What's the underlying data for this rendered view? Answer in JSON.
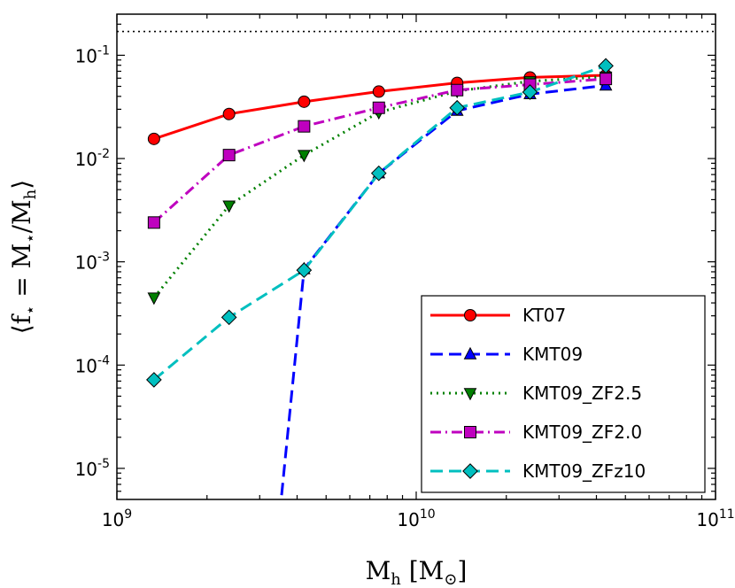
{
  "chart_data": {
    "type": "line",
    "xscale": "log",
    "yscale": "log",
    "xlim": [
      1000000000.0,
      100000000000.0
    ],
    "ylim": [
      5e-06,
      0.25
    ],
    "xlabel": "M_h [M_⊙]",
    "ylabel": "⟨f_⋆ = M_⋆/M_h⟩",
    "x_ticks": [
      {
        "value": 1000000000.0,
        "base": "10",
        "exp": "9"
      },
      {
        "value": 10000000000.0,
        "base": "10",
        "exp": "10"
      },
      {
        "value": 100000000000.0,
        "base": "10",
        "exp": "11"
      }
    ],
    "y_ticks": [
      {
        "value": 1e-05,
        "base": "10",
        "exp": "-5"
      },
      {
        "value": 0.0001,
        "base": "10",
        "exp": "-4"
      },
      {
        "value": 0.001,
        "base": "10",
        "exp": "-3"
      },
      {
        "value": 0.01,
        "base": "10",
        "exp": "-2"
      },
      {
        "value": 0.1,
        "base": "10",
        "exp": "-1"
      }
    ],
    "reference_line": {
      "y": 0.17,
      "style": "dotted",
      "color": "#000000"
    },
    "legend_position": "lower-right",
    "series": [
      {
        "name": "KT07",
        "color": "#ff0000",
        "marker": "circle",
        "dash": "solid",
        "x": [
          1330000000.0,
          2370000000.0,
          4220000000.0,
          7500000000.0,
          13700000000.0,
          24000000000.0,
          43000000000.0
        ],
        "y": [
          0.0155,
          0.027,
          0.0355,
          0.0445,
          0.054,
          0.061,
          0.064
        ]
      },
      {
        "name": "KMT09",
        "color": "#0000ff",
        "marker": "triangle-up",
        "dash": "dashed",
        "x": [
          3550000000.0,
          4220000000.0,
          7500000000.0,
          13700000000.0,
          24000000000.0,
          43000000000.0
        ],
        "y": [
          5.5e-06,
          0.00085,
          0.0072,
          0.029,
          0.042,
          0.051
        ],
        "markers_x": [
          4220000000.0,
          7500000000.0,
          13700000000.0,
          24000000000.0,
          43000000000.0
        ],
        "markers_y": [
          0.00085,
          0.0072,
          0.029,
          0.042,
          0.051
        ]
      },
      {
        "name": "KMT09_ZF2.5",
        "color": "#008000",
        "marker": "triangle-down",
        "dash": "dotted",
        "x": [
          1330000000.0,
          2370000000.0,
          4220000000.0,
          7500000000.0,
          13700000000.0,
          24000000000.0,
          43000000000.0
        ],
        "y": [
          0.00045,
          0.0035,
          0.0108,
          0.028,
          0.045,
          0.056,
          0.062
        ]
      },
      {
        "name": "KMT09_ZF2.0",
        "color": "#bf00bf",
        "marker": "square",
        "dash": "dashdot",
        "x": [
          1330000000.0,
          2370000000.0,
          4220000000.0,
          7500000000.0,
          13700000000.0,
          24000000000.0,
          43000000000.0
        ],
        "y": [
          0.0024,
          0.0108,
          0.0205,
          0.031,
          0.046,
          0.052,
          0.059
        ]
      },
      {
        "name": "KMT09_ZFz10",
        "color": "#00bfbf",
        "marker": "diamond",
        "dash": "dashed",
        "x": [
          1330000000.0,
          2370000000.0,
          4220000000.0,
          7500000000.0,
          13700000000.0,
          24000000000.0,
          43000000000.0
        ],
        "y": [
          7.2e-05,
          0.00029,
          0.00083,
          0.0072,
          0.031,
          0.044,
          0.079
        ]
      }
    ]
  }
}
